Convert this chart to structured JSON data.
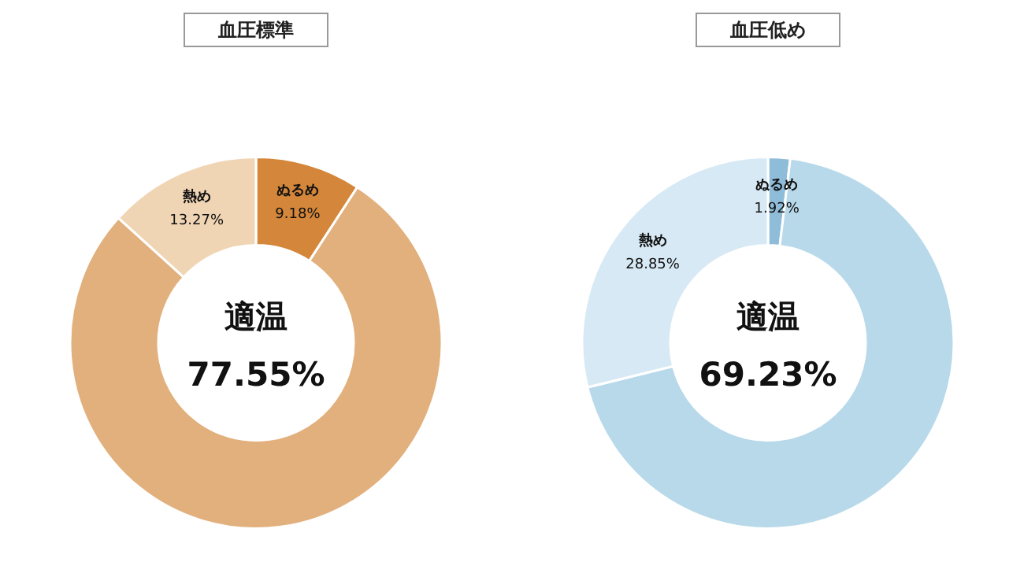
{
  "chart_data": [
    {
      "type": "donut",
      "title": "血圧標準",
      "categories": [
        "ぬるめ",
        "適温",
        "熱め"
      ],
      "values": [
        9.18,
        77.55,
        13.27
      ],
      "value_labels": [
        "9.18%",
        "77.55%",
        "13.27%"
      ],
      "colors": [
        "#d4873a",
        "#e2b07c",
        "#f0d5b5"
      ],
      "legend": false
    },
    {
      "type": "donut",
      "title": "血圧低め",
      "categories": [
        "ぬるめ",
        "適温",
        "熱め"
      ],
      "values": [
        1.92,
        69.23,
        28.85
      ],
      "value_labels": [
        "1.92%",
        "69.23%",
        "28.85%"
      ],
      "colors": [
        "#8fbcd9",
        "#b7d9ea",
        "#d7e9f4"
      ],
      "legend": false
    }
  ]
}
